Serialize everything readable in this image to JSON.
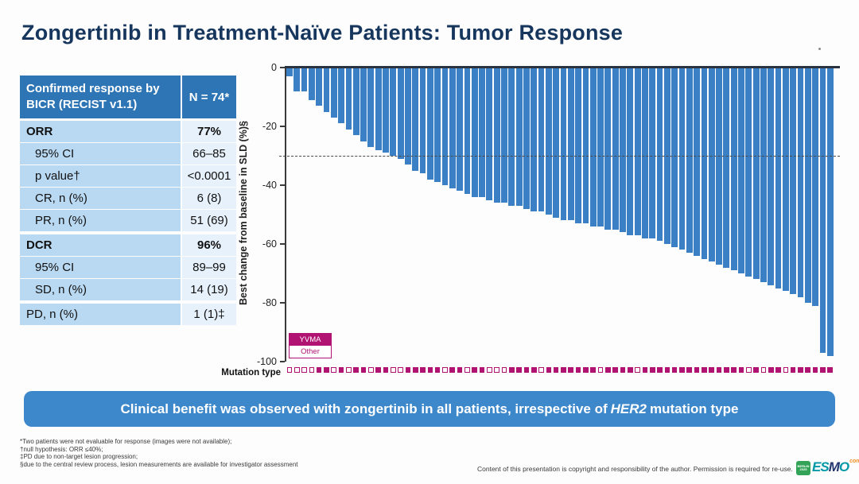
{
  "title": "Zongertinib in Treatment-Naïve Patients: Tumor Response",
  "colors": {
    "title_navy": "#17365d",
    "table_header_blue": "#2e75b5",
    "table_label_bg": "#b9d8f1",
    "table_value_bg": "#e6f1fb",
    "bar_blue": "#3b7fc4",
    "banner_blue": "#3d87cb",
    "mutation_magenta": "#b11373"
  },
  "table": {
    "header": {
      "label": "Confirmed response by BICR (RECIST v1.1)",
      "value": "N = 74*"
    },
    "rows": [
      {
        "label": "ORR",
        "value": "77%",
        "bold": true,
        "indent": false,
        "gap_before": false
      },
      {
        "label": "95% CI",
        "value": "66–85",
        "bold": false,
        "indent": true,
        "gap_before": false
      },
      {
        "label": "p value†",
        "value": "<0.0001",
        "bold": false,
        "indent": true,
        "gap_before": false
      },
      {
        "label": "CR, n (%)",
        "value": "6 (8)",
        "bold": false,
        "indent": true,
        "gap_before": false
      },
      {
        "label": "PR, n (%)",
        "value": "51 (69)",
        "bold": false,
        "indent": true,
        "gap_before": false
      },
      {
        "label": "DCR",
        "value": "96%",
        "bold": true,
        "indent": false,
        "gap_before": true
      },
      {
        "label": "95% CI",
        "value": "89–99",
        "bold": false,
        "indent": true,
        "gap_before": false
      },
      {
        "label": "SD, n (%)",
        "value": "14 (19)",
        "bold": false,
        "indent": true,
        "gap_before": false
      },
      {
        "label": "PD, n (%)",
        "value": "1 (1)‡",
        "bold": false,
        "indent": false,
        "gap_before": true
      }
    ]
  },
  "chart_data": {
    "type": "bar",
    "subtype": "waterfall",
    "title": "",
    "xlabel": "Mutation type",
    "ylabel": "Best change from baseline in SLD (%)§",
    "ylim": [
      -100,
      0
    ],
    "yticks": [
      0,
      -20,
      -40,
      -60,
      -80,
      -100
    ],
    "reference_line": -30,
    "grid": false,
    "legend_position": "bottom-left",
    "legend": [
      "YVMA",
      "Other"
    ],
    "series": [
      {
        "name": "Best change from baseline in SLD (%)",
        "values": [
          -3,
          -8,
          -8,
          -11,
          -13,
          -15,
          -17,
          -19,
          -21,
          -23,
          -25,
          -27,
          -28,
          -29,
          -30,
          -31,
          -33,
          -35,
          -36,
          -38,
          -39,
          -40,
          -41,
          -42,
          -43,
          -44,
          -44,
          -45,
          -46,
          -46,
          -47,
          -47,
          -48,
          -49,
          -49,
          -50,
          -51,
          -52,
          -52,
          -53,
          -53,
          -54,
          -54,
          -55,
          -55,
          -56,
          -57,
          -57,
          -58,
          -58,
          -59,
          -60,
          -61,
          -62,
          -63,
          -64,
          -65,
          -66,
          -67,
          -68,
          -69,
          -70,
          -71,
          -72,
          -73,
          -74,
          -75,
          -76,
          -77,
          -78,
          -80,
          -81,
          -97,
          -98
        ]
      }
    ],
    "mutation_types": [
      "Other",
      "Other",
      "Other",
      "Other",
      "YVMA",
      "YVMA",
      "Other",
      "YVMA",
      "Other",
      "YVMA",
      "YVMA",
      "Other",
      "YVMA",
      "YVMA",
      "Other",
      "Other",
      "YVMA",
      "YVMA",
      "YVMA",
      "YVMA",
      "YVMA",
      "Other",
      "YVMA",
      "YVMA",
      "Other",
      "YVMA",
      "YVMA",
      "Other",
      "Other",
      "Other",
      "YVMA",
      "YVMA",
      "YVMA",
      "YVMA",
      "Other",
      "YVMA",
      "YVMA",
      "YVMA",
      "YVMA",
      "YVMA",
      "YVMA",
      "YVMA",
      "Other",
      "YVMA",
      "YVMA",
      "YVMA",
      "YVMA",
      "Other",
      "YVMA",
      "YVMA",
      "YVMA",
      "YVMA",
      "YVMA",
      "YVMA",
      "YVMA",
      "YVMA",
      "YVMA",
      "YVMA",
      "YVMA",
      "YVMA",
      "YVMA",
      "YVMA",
      "Other",
      "YVMA",
      "Other",
      "YVMA",
      "YVMA",
      "Other",
      "YVMA",
      "YVMA",
      "YVMA",
      "YVMA",
      "YVMA",
      "YVMA"
    ]
  },
  "banner": {
    "pre": "Clinical benefit was observed with zongertinib in all patients, irrespective of",
    "gene": "HER2",
    "post": "mutation type"
  },
  "footnotes": [
    "*Two patients were not evaluable for response (images were not available);",
    "†null hypothesis: ORR ≤40%;",
    "‡PD due to non-target lesion progression;",
    "§due to the central review process, lesion measurements are available for investigator assessment"
  ],
  "footer": {
    "copyright": "Content of this presentation is copyright and responsibility of the author. Permission is required for re-use."
  },
  "logo": {
    "badge_line1": "BERLIN",
    "badge_line2": "2025",
    "name": "ESMO",
    "suffix": "congress"
  }
}
